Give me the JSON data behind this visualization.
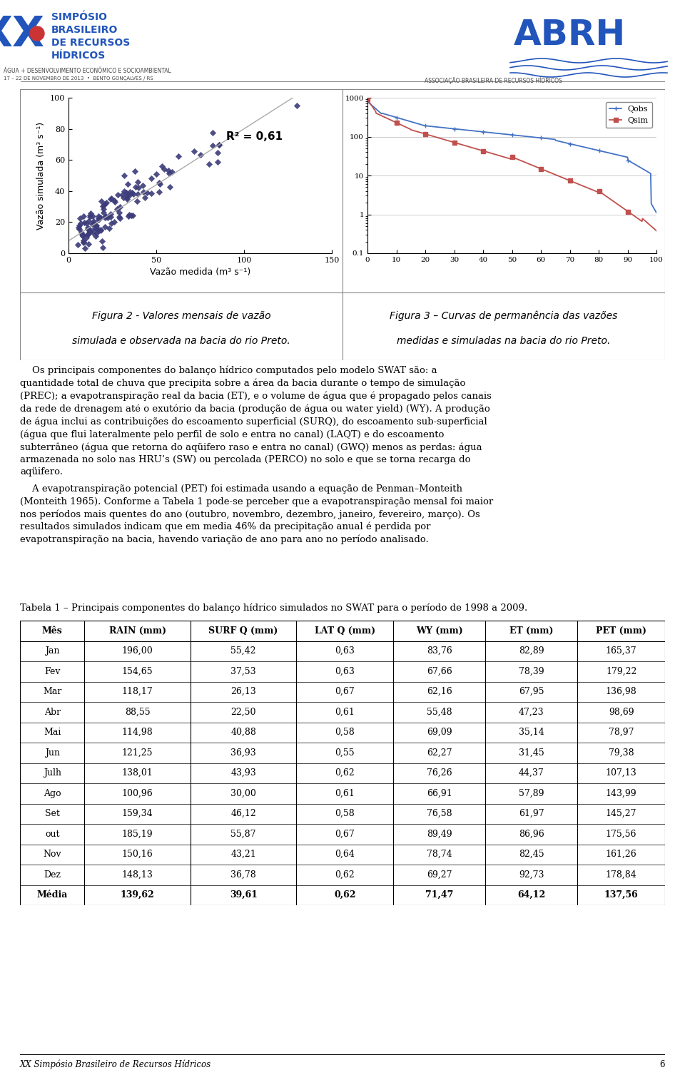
{
  "r2_label": "R² = 0,61",
  "ylabel_fig2": "Vazão simulada (m³ s⁻¹)",
  "xlabel_fig2": "Vazão medida (m³ s⁻¹)",
  "fig2_caption_line1": "Figura 2 - Valores mensais de vazão",
  "fig2_caption_line2": "simulada e observada na bacia do rio Preto.",
  "fig3_caption_line1": "Figura 3 – Curvas de permanência das vazões",
  "fig3_caption_line2": "medidas e simuladas na bacia do rio Preto.",
  "para1_lines": [
    "    Os principais componentes do balanço hídrico computados pelo modelo SWAT são: a",
    "quantidade total de chuva que precipita sobre a área da bacia durante o tempo de simulação",
    "(PREC); a evapotranspiração real da bacia (ET), e o volume de água que é propagado pelos canais",
    "da rede de drenagem até o exutório da bacia (produção de água ou water yield) (WY). A produção",
    "de água inclui as contribuições do escoamento superficial (SURQ), do escoamento sub-superficial",
    "(água que flui lateralmente pelo perfil de solo e entra no canal) (LAQT) e do escoamento",
    "subterrâneo (água que retorna do aqüifero raso e entra no canal) (GWQ) menos as perdas: água",
    "armazenada no solo nas HRU’s (SW) ou percolada (PERCO) no solo e que se torna recarga do",
    "aqüifero."
  ],
  "para2_lines": [
    "    A evapotranspiração potencial (PET) foi estimada usando a equação de Penman–Monteith",
    "(Monteith 1965). Conforme a Tabela 1 pode-se perceber que a evapotranspiração mensal foi maior",
    "nos períodos mais quentes do ano (outubro, novembro, dezembro, janeiro, fevereiro, março). Os",
    "resultados simulados indicam que em media 46% da precipitação anual é perdida por",
    "evapotranspiração na bacia, havendo variação de ano para ano no período analisado."
  ],
  "table_title": "Tabela 1 – Principais componentes do balanço hídrico simulados no SWAT para o período de 1998 a 2009.",
  "table_headers": [
    "Mês",
    "RAIN (mm)",
    "SURF Q (mm)",
    "LAT Q (mm)",
    "WY (mm)",
    "ET (mm)",
    "PET (mm)"
  ],
  "table_data": [
    [
      "Jan",
      "196,00",
      "55,42",
      "0,63",
      "83,76",
      "82,89",
      "165,37"
    ],
    [
      "Fev",
      "154,65",
      "37,53",
      "0,63",
      "67,66",
      "78,39",
      "179,22"
    ],
    [
      "Mar",
      "118,17",
      "26,13",
      "0,67",
      "62,16",
      "67,95",
      "136,98"
    ],
    [
      "Abr",
      "88,55",
      "22,50",
      "0,61",
      "55,48",
      "47,23",
      "98,69"
    ],
    [
      "Mai",
      "114,98",
      "40,88",
      "0,58",
      "69,09",
      "35,14",
      "78,97"
    ],
    [
      "Jun",
      "121,25",
      "36,93",
      "0,55",
      "62,27",
      "31,45",
      "79,38"
    ],
    [
      "Julh",
      "138,01",
      "43,93",
      "0,62",
      "76,26",
      "44,37",
      "107,13"
    ],
    [
      "Ago",
      "100,96",
      "30,00",
      "0,61",
      "66,91",
      "57,89",
      "143,99"
    ],
    [
      "Set",
      "159,34",
      "46,12",
      "0,58",
      "76,58",
      "61,97",
      "145,27"
    ],
    [
      "out",
      "185,19",
      "55,87",
      "0,67",
      "89,49",
      "86,96",
      "175,56"
    ],
    [
      "Nov",
      "150,16",
      "43,21",
      "0,64",
      "78,74",
      "82,45",
      "161,26"
    ],
    [
      "Dez",
      "148,13",
      "36,78",
      "0,62",
      "69,27",
      "92,73",
      "178,84"
    ],
    [
      "Média",
      "139,62",
      "39,61",
      "0,62",
      "71,47",
      "64,12",
      "137,56"
    ]
  ],
  "footer_text": "XX Simpósio Brasileiro de Recursos Hídricos",
  "footer_page": "6",
  "scatter_color": "#3c3c7a",
  "qobs_color": "#4472C4",
  "qsim_color": "#C0504D",
  "header_line1": "SIMPÓSIO",
  "header_line2": "BRASILEIRO",
  "header_line3": "DE RECURSOS",
  "header_line4": "HÍDRICOS",
  "header_sub1": "ÁGUA + DESENVOLVIMENTO ECONÔMICO E SOCIOAMBIENTAL",
  "header_sub2": "17 – 22 DE NOVEMBRO DE 2013  •  BENTO GONÇALVES / RS",
  "abrh_sub": "ASSOCIAÇÃO BRASILEIRA DE RECURSOS HÍDRICOS"
}
